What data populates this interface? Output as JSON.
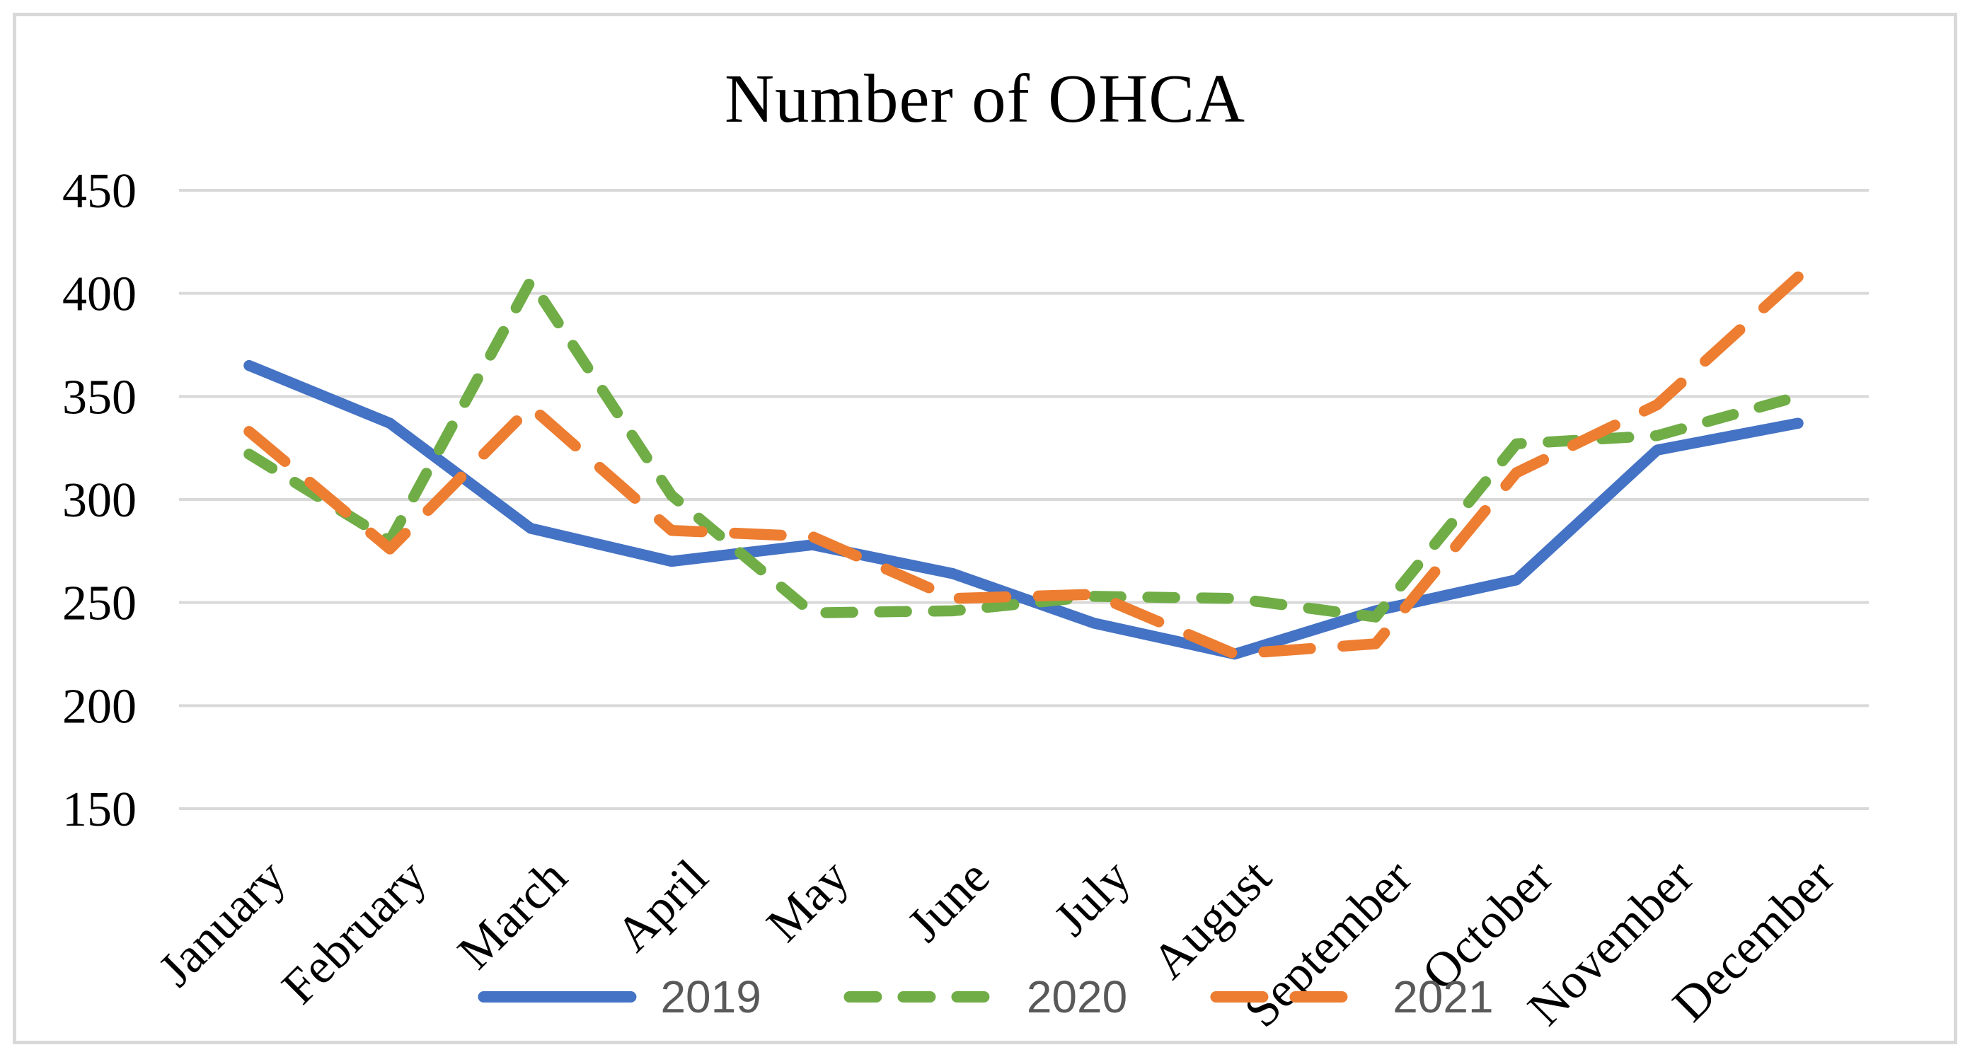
{
  "chart_data": {
    "type": "line",
    "title": "Number of OHCA",
    "categories": [
      "January",
      "February",
      "March",
      "April",
      "May",
      "June",
      "July",
      "August",
      "September",
      "October",
      "November",
      "December"
    ],
    "series": [
      {
        "name": "2019",
        "color": "#4472C4",
        "dash": "solid",
        "values": [
          365,
          337,
          286,
          270,
          278,
          264,
          240,
          225,
          246,
          261,
          324,
          337
        ]
      },
      {
        "name": "2020",
        "color": "#70AD47",
        "dash": "short-dash",
        "values": [
          322,
          280,
          406,
          302,
          245,
          246,
          253,
          252,
          243,
          327,
          331,
          350
        ]
      },
      {
        "name": "2021",
        "color": "#ED7D31",
        "dash": "long-dash",
        "values": [
          333,
          276,
          345,
          285,
          282,
          252,
          254,
          225,
          230,
          313,
          346,
          408
        ]
      }
    ],
    "xlabel": "",
    "ylabel": "",
    "ylim": [
      150,
      450
    ],
    "ytick_step": 50,
    "ytick_labels": [
      "450",
      "400",
      "350",
      "300",
      "250",
      "200",
      "150"
    ],
    "grid": "horizontal",
    "legend_position": "bottom"
  },
  "style": {
    "gridline_color": "#D9D9D9",
    "border_color": "#D9D9D9",
    "title_color": "#000000",
    "axis_text_color": "#000000",
    "legend_text_color": "#595959",
    "background": "#ffffff"
  }
}
